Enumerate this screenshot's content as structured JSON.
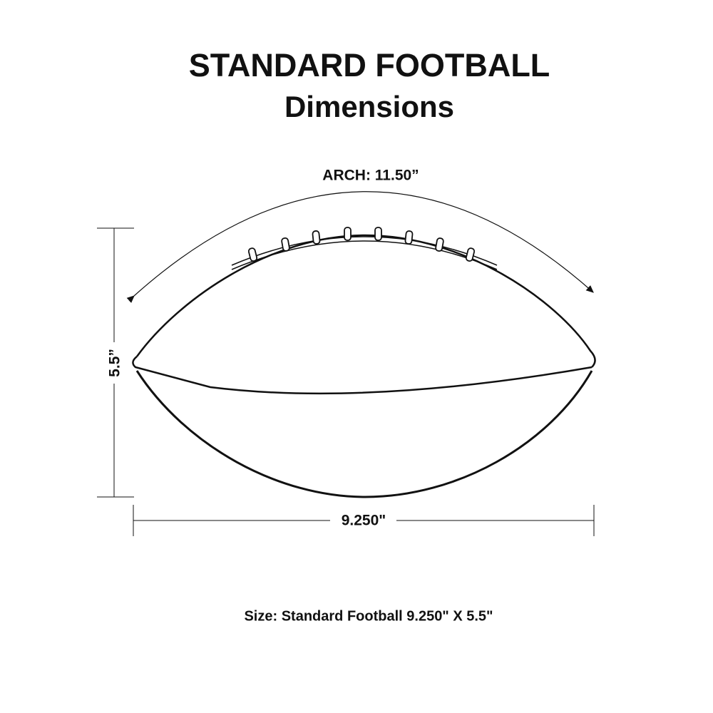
{
  "title": {
    "line1": "STANDARD FOOTBALL",
    "line2": "Dimensions"
  },
  "dimensions": {
    "arch": "ARCH: 11.50”",
    "height": "5.5”",
    "width": "9.250\""
  },
  "caption": "Size: Standard Football 9.250\" X 5.5\""
}
